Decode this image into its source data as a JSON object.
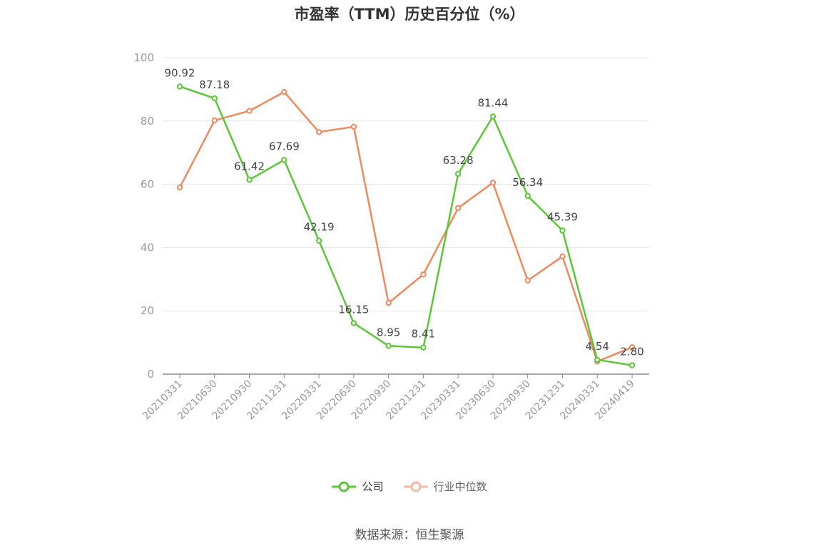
{
  "chart_data": {
    "type": "line",
    "title": "市盈率（TTM）历史百分位（%）",
    "categories": [
      "20210331",
      "20210630",
      "20210930",
      "20211231",
      "20220331",
      "20220630",
      "20220930",
      "20221231",
      "20230331",
      "20230630",
      "20230930",
      "20231231",
      "20240331",
      "20240419"
    ],
    "series": [
      {
        "name": "公司",
        "color": "#5ac737",
        "values": [
          90.92,
          87.18,
          61.42,
          67.69,
          42.19,
          16.15,
          8.95,
          8.41,
          63.28,
          81.44,
          56.34,
          45.39,
          4.54,
          2.8
        ],
        "labels": [
          "90.92",
          "87.18",
          "61.42",
          "67.69",
          "42.19",
          "16.15",
          "8.95",
          "8.41",
          "63.28",
          "81.44",
          "56.34",
          "45.39",
          "4.54",
          "2.80"
        ]
      },
      {
        "name": "行业中位数",
        "color": "#f0895c",
        "values": [
          59,
          80.2,
          83.2,
          89.2,
          76.5,
          78.2,
          22.5,
          31.5,
          52.5,
          60.5,
          29.6,
          37.2,
          4,
          8.5
        ]
      }
    ],
    "yticks": [
      "0",
      "20",
      "40",
      "60",
      "80",
      "100"
    ],
    "ylim": [
      0,
      100
    ],
    "grid": true,
    "legend_position": "bottom"
  },
  "legend": {
    "company": "公司",
    "industry": "行业中位数"
  },
  "source": "数据来源：恒生聚源"
}
